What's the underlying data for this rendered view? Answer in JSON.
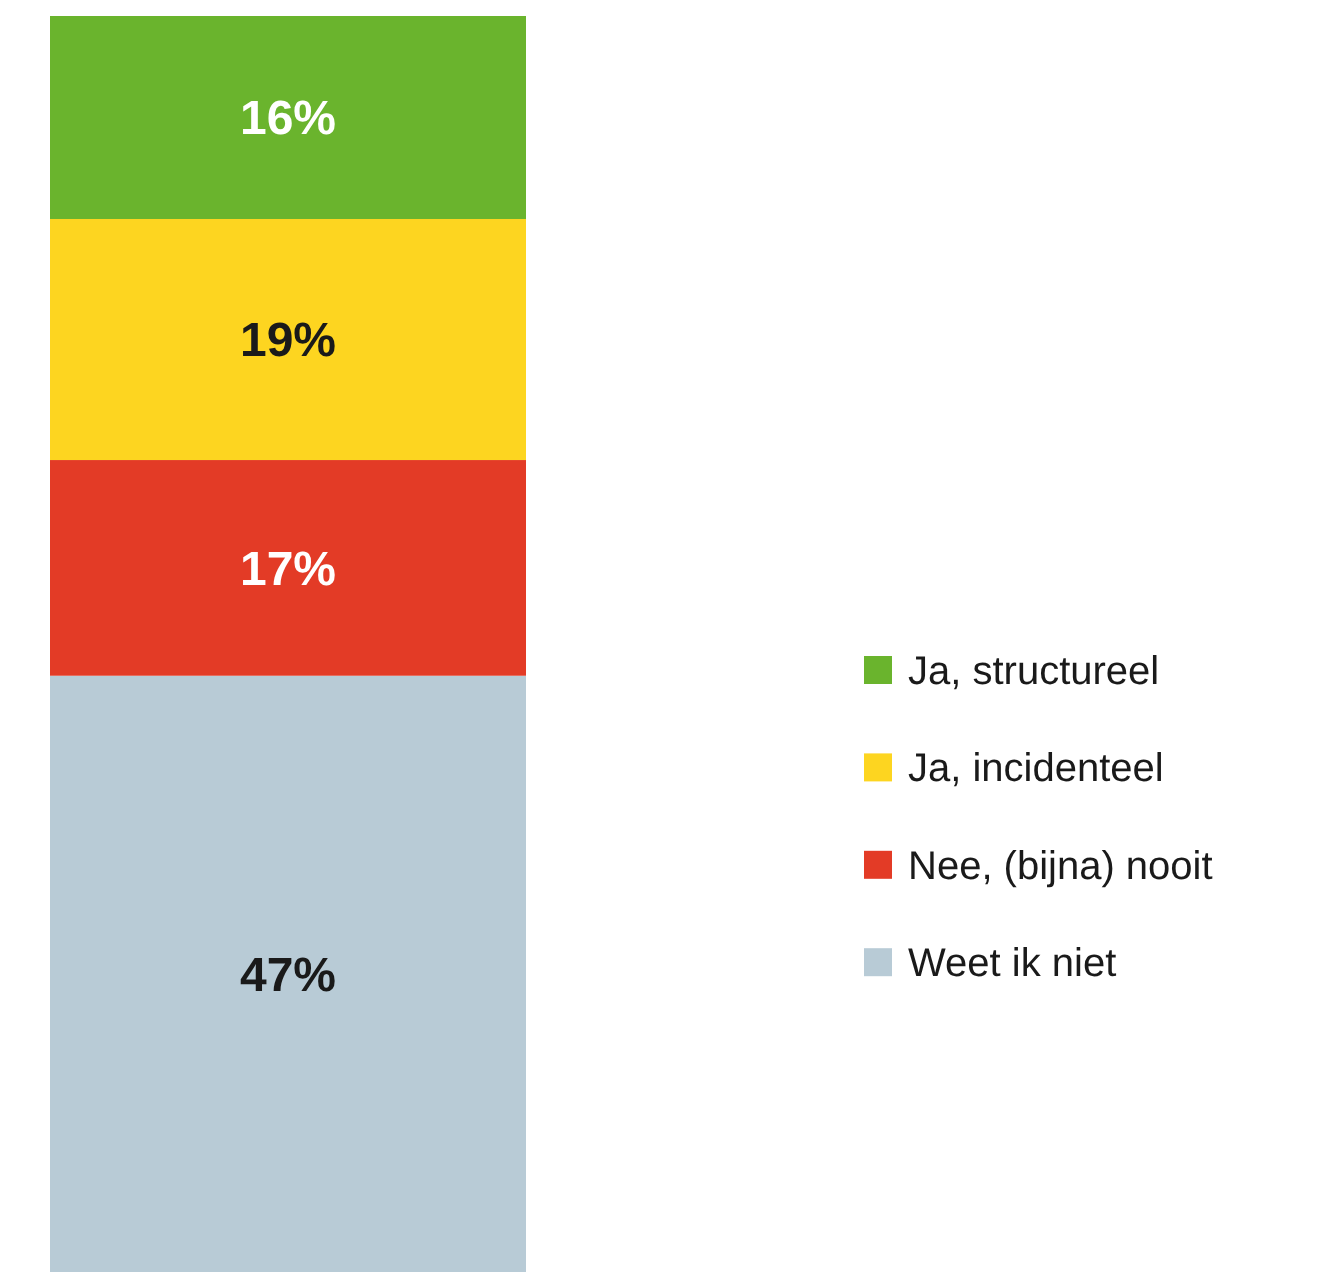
{
  "chart_data": {
    "type": "bar",
    "stacked": true,
    "categories": [
      null
    ],
    "legend": "right",
    "series": [
      {
        "name": "Weet ik niet",
        "color": "#b8cbd6",
        "values": [
          47
        ],
        "value_labels": [
          "47%"
        ]
      },
      {
        "name": "Nee, (bijna) nooit",
        "color": "#e33b26",
        "values": [
          17
        ],
        "value_labels": [
          "17%"
        ]
      },
      {
        "name": "Ja, incidenteel",
        "color": "#fdd520",
        "values": [
          19
        ],
        "value_labels": [
          "19%"
        ]
      },
      {
        "name": "Ja, structureel",
        "color": "#6ab42d",
        "values": [
          16
        ],
        "value_labels": [
          "16%"
        ]
      }
    ]
  }
}
